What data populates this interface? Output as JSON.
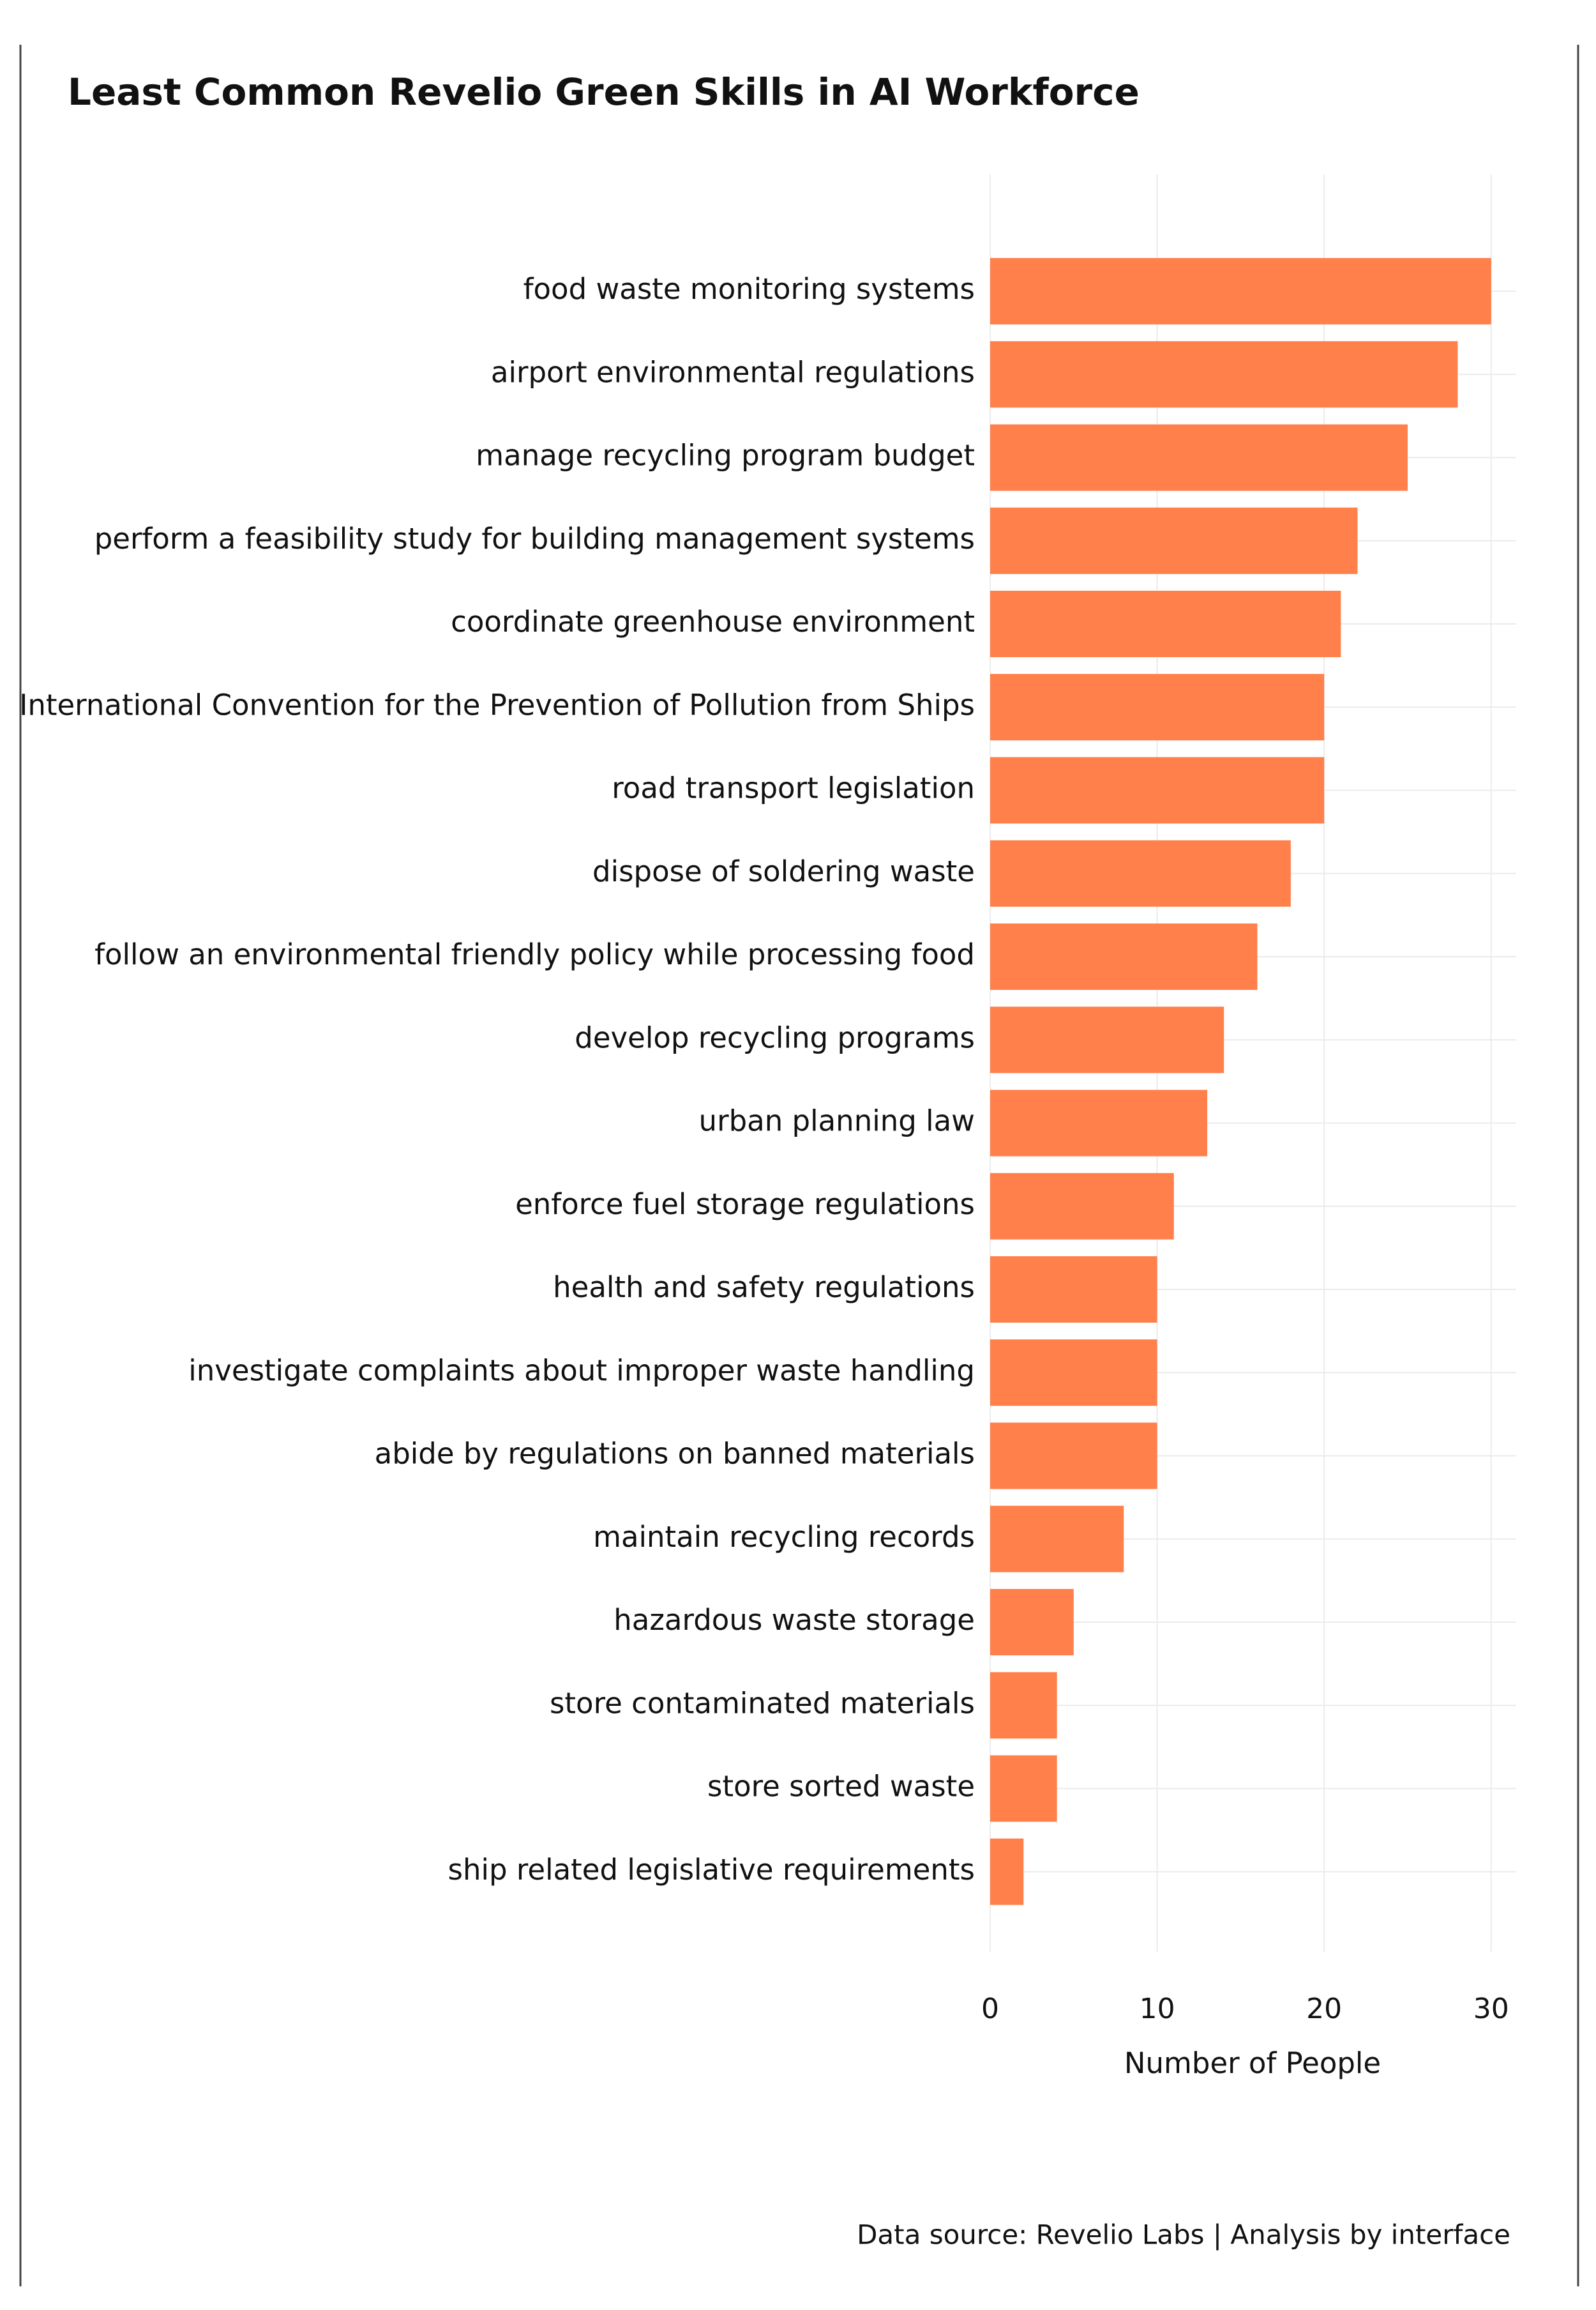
{
  "chart_data": {
    "type": "bar",
    "orientation": "horizontal",
    "title": "Least Common Revelio Green Skills in AI Workforce",
    "categories": [
      "food waste monitoring systems",
      "airport environmental regulations",
      "manage recycling program budget",
      "perform a feasibility study for building management systems",
      "coordinate greenhouse environment",
      "International Convention for the Prevention of Pollution from Ships",
      "road transport legislation",
      "dispose of soldering waste",
      "follow an environmental friendly policy while processing food",
      "develop recycling programs",
      "urban planning law",
      "enforce fuel storage regulations",
      "health and safety regulations",
      "investigate complaints about improper waste handling",
      "abide by regulations on banned materials",
      "maintain recycling records",
      "hazardous waste storage",
      "store contaminated materials",
      "store sorted waste",
      "ship related legislative requirements"
    ],
    "values": [
      30,
      28,
      25,
      22,
      21,
      20,
      20,
      18,
      16,
      14,
      13,
      11,
      10,
      10,
      10,
      8,
      5,
      4,
      4,
      2
    ],
    "color": "#ff804b",
    "xlabel": "Number of People",
    "xlim": [
      0,
      31.5
    ],
    "xticks": [
      0,
      10,
      20,
      30
    ],
    "grid": true,
    "source": "Data source: Revelio Labs | Analysis by interface"
  }
}
